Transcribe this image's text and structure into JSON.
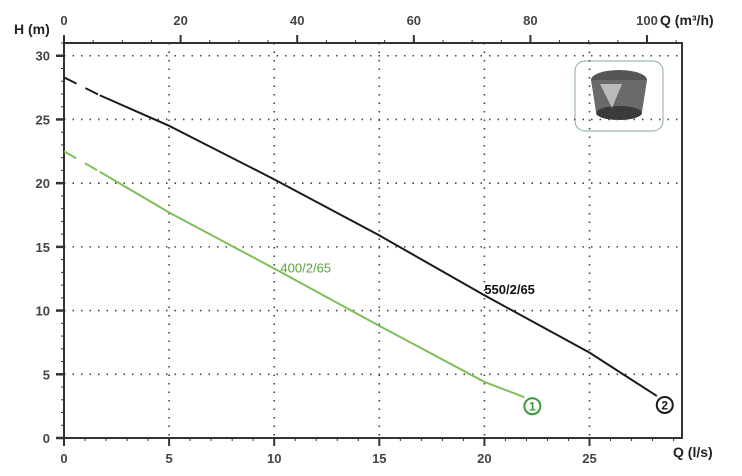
{
  "chart_data": {
    "type": "line",
    "ylabel": "H (m)",
    "xlabel": "Q (l/s)",
    "x2label": "Q (m³/h)",
    "xlim": [
      0,
      29.4
    ],
    "ylim": [
      0,
      31
    ],
    "x2lim": [
      0,
      106
    ],
    "xticks": [
      0,
      5,
      10,
      15,
      20,
      25
    ],
    "x2ticks": [
      0,
      20,
      40,
      60,
      80,
      100
    ],
    "yticks": [
      0,
      5,
      10,
      15,
      20,
      25,
      30
    ],
    "grid": true,
    "series": [
      {
        "name": "550/2/65",
        "marker": "2",
        "color": "#1a1a1a",
        "dashed_until": 1.7,
        "x": [
          0,
          1.7,
          5,
          10,
          15,
          20,
          25,
          28.2
        ],
        "y": [
          28.3,
          26.9,
          24.5,
          20.3,
          15.9,
          11.2,
          6.7,
          3.3
        ]
      },
      {
        "name": "400/2/65",
        "marker": "1",
        "color": "#7fbf5a",
        "dashed_until": 1.7,
        "x": [
          0,
          1.7,
          5,
          10,
          15,
          20,
          21.9
        ],
        "y": [
          22.5,
          20.9,
          17.7,
          13.3,
          8.8,
          4.4,
          3.2
        ]
      }
    ],
    "marker_color_1": "#3a9a3a"
  }
}
